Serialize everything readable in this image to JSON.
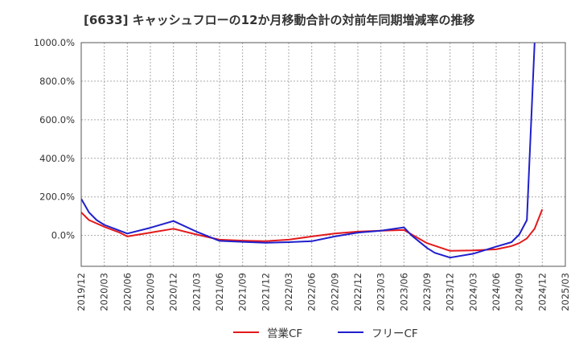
{
  "chart_data": {
    "type": "line",
    "title": "[6633]  キャッシュフローの12か月移動合計の対前年同期増減率の推移",
    "xlabel": "",
    "ylabel": "",
    "ylim": [
      -160,
      1000
    ],
    "yticks": [
      0,
      200,
      400,
      600,
      800,
      1000
    ],
    "ytick_labels": [
      "0.0%",
      "200.0%",
      "400.0%",
      "600.0%",
      "800.0%",
      "1000.0%"
    ],
    "x_ticks": [
      "2019/12",
      "2020/03",
      "2020/06",
      "2020/09",
      "2020/12",
      "2021/03",
      "2021/06",
      "2021/09",
      "2021/12",
      "2022/03",
      "2022/06",
      "2022/09",
      "2022/12",
      "2023/03",
      "2023/06",
      "2023/09",
      "2023/12",
      "2024/03",
      "2024/06",
      "2024/09",
      "2024/12",
      "2025/03"
    ],
    "grid": true,
    "legend_position": "bottom-center",
    "colors": {
      "eigyo": "#e31a1c",
      "free": "#1f1fcc",
      "grid": "#aaaaaa"
    },
    "series": [
      {
        "name": "営業CF",
        "color": "#e31a1c",
        "points": [
          [
            "2019/12",
            120
          ],
          [
            "2020/01",
            80
          ],
          [
            "2020/03",
            45
          ],
          [
            "2020/05",
            15
          ],
          [
            "2020/06",
            -5
          ],
          [
            "2020/09",
            15
          ],
          [
            "2020/12",
            35
          ],
          [
            "2021/03",
            5
          ],
          [
            "2021/06",
            -22
          ],
          [
            "2021/09",
            -27
          ],
          [
            "2021/12",
            -30
          ],
          [
            "2022/03",
            -22
          ],
          [
            "2022/06",
            -5
          ],
          [
            "2022/09",
            10
          ],
          [
            "2022/12",
            20
          ],
          [
            "2023/03",
            25
          ],
          [
            "2023/06",
            28
          ],
          [
            "2023/09",
            -40
          ],
          [
            "2023/12",
            -80
          ],
          [
            "2024/03",
            -78
          ],
          [
            "2024/06",
            -72
          ],
          [
            "2024/08",
            -55
          ],
          [
            "2024/09",
            -40
          ],
          [
            "2024/10",
            -15
          ],
          [
            "2024/11",
            35
          ],
          [
            "2024/12",
            135
          ]
        ]
      },
      {
        "name": "フリーCF",
        "color": "#1f1fcc",
        "points": [
          [
            "2019/12",
            190
          ],
          [
            "2020/01",
            120
          ],
          [
            "2020/02",
            80
          ],
          [
            "2020/03",
            55
          ],
          [
            "2020/05",
            25
          ],
          [
            "2020/06",
            10
          ],
          [
            "2020/09",
            40
          ],
          [
            "2020/12",
            75
          ],
          [
            "2021/03",
            20
          ],
          [
            "2021/06",
            -28
          ],
          [
            "2021/09",
            -33
          ],
          [
            "2021/12",
            -38
          ],
          [
            "2022/03",
            -35
          ],
          [
            "2022/06",
            -30
          ],
          [
            "2022/09",
            -5
          ],
          [
            "2022/12",
            15
          ],
          [
            "2023/03",
            25
          ],
          [
            "2023/06",
            42
          ],
          [
            "2023/07",
            0
          ],
          [
            "2023/09",
            -65
          ],
          [
            "2023/10",
            -90
          ],
          [
            "2023/12",
            -115
          ],
          [
            "2024/03",
            -95
          ],
          [
            "2024/06",
            -58
          ],
          [
            "2024/08",
            -35
          ],
          [
            "2024/09",
            5
          ],
          [
            "2024/10",
            80
          ],
          [
            "2024/11",
            1000
          ]
        ]
      }
    ]
  }
}
